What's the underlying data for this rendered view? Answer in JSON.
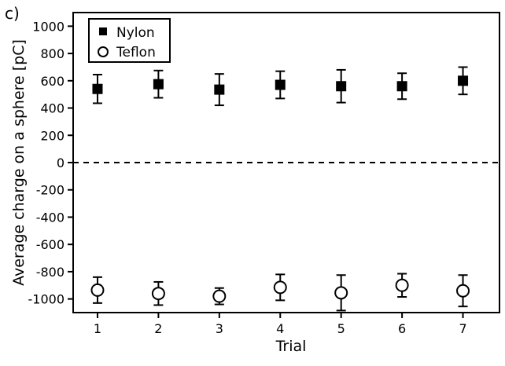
{
  "chart_data": {
    "type": "scatter",
    "panel_label": "c)",
    "title": "",
    "xlabel": "Trial",
    "ylabel": "Average charge on a sphere [pC]",
    "xlim": [
      0.6,
      7.6
    ],
    "ylim": [
      -1100,
      1100
    ],
    "x_ticks": [
      1,
      2,
      3,
      4,
      5,
      6,
      7
    ],
    "y_ticks": [
      1000,
      800,
      600,
      400,
      200,
      0,
      -200,
      -400,
      -600,
      -800,
      -1000
    ],
    "reference_line": {
      "y": 0,
      "style": "dashed"
    },
    "legend": {
      "position": "top-left"
    },
    "series": [
      {
        "name": "Nylon",
        "marker": "filled-square",
        "x": [
          1,
          2,
          3,
          4,
          5,
          6,
          7
        ],
        "y": [
          540,
          575,
          535,
          570,
          560,
          560,
          600
        ],
        "error": [
          105,
          100,
          115,
          100,
          120,
          95,
          100
        ]
      },
      {
        "name": "Teflon",
        "marker": "open-circle",
        "x": [
          1,
          2,
          3,
          4,
          5,
          6,
          7
        ],
        "y": [
          -935,
          -960,
          -980,
          -915,
          -955,
          -900,
          -940
        ],
        "error": [
          95,
          85,
          60,
          95,
          130,
          85,
          115
        ]
      }
    ]
  }
}
